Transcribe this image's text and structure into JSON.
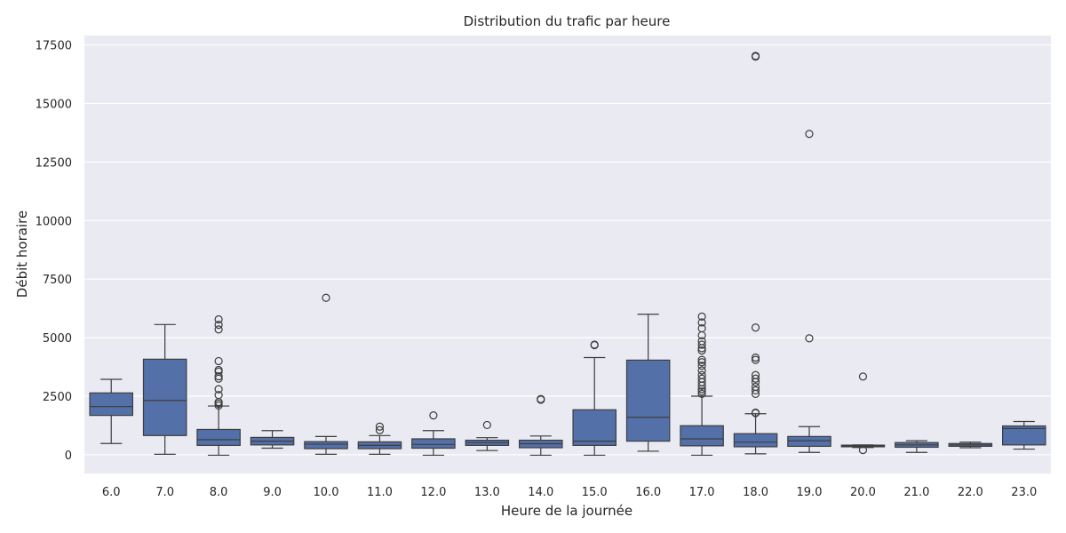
{
  "colors": {
    "box_fill": "#5470a9",
    "line": "#3d3d3d",
    "plot_background": "#eaeaf2",
    "grid": "#ffffff"
  },
  "chart_data": {
    "type": "box",
    "title": "Distribution du trafic par heure",
    "xlabel": "Heure de la journée",
    "ylabel": "Débit horaire",
    "ylim": [
      -800,
      17900
    ],
    "yticks": [
      0,
      2500,
      5000,
      7500,
      10000,
      12500,
      15000,
      17500
    ],
    "grid": "horizontal",
    "categories": [
      "6.0",
      "7.0",
      "8.0",
      "9.0",
      "10.0",
      "11.0",
      "12.0",
      "13.0",
      "14.0",
      "15.0",
      "16.0",
      "17.0",
      "18.0",
      "19.0",
      "20.0",
      "21.0",
      "22.0",
      "23.0"
    ],
    "boxes": [
      {
        "whisker_low": 480,
        "q1": 1680,
        "median": 2060,
        "q3": 2640,
        "whisker_high": 3220,
        "outliers": []
      },
      {
        "whisker_low": 20,
        "q1": 820,
        "median": 2320,
        "q3": 4080,
        "whisker_high": 5560,
        "outliers": []
      },
      {
        "whisker_low": -20,
        "q1": 400,
        "median": 640,
        "q3": 1080,
        "whisker_high": 2080,
        "outliers": [
          2100,
          2180,
          2250,
          2550,
          2800,
          3250,
          3350,
          3550,
          3620,
          4000,
          5350,
          5550,
          5780
        ]
      },
      {
        "whisker_low": 280,
        "q1": 420,
        "median": 580,
        "q3": 740,
        "whisker_high": 1030,
        "outliers": []
      },
      {
        "whisker_low": 20,
        "q1": 260,
        "median": 450,
        "q3": 560,
        "whisker_high": 780,
        "outliers": [
          6700
        ]
      },
      {
        "whisker_low": 20,
        "q1": 260,
        "median": 400,
        "q3": 550,
        "whisker_high": 820,
        "outliers": [
          1050,
          1200
        ]
      },
      {
        "whisker_low": -20,
        "q1": 280,
        "median": 440,
        "q3": 680,
        "whisker_high": 1030,
        "outliers": [
          1680
        ]
      },
      {
        "whisker_low": 180,
        "q1": 400,
        "median": 520,
        "q3": 620,
        "whisker_high": 730,
        "outliers": [
          1270
        ]
      },
      {
        "whisker_low": -20,
        "q1": 300,
        "median": 470,
        "q3": 620,
        "whisker_high": 800,
        "outliers": [
          2350,
          2380
        ]
      },
      {
        "whisker_low": -20,
        "q1": 400,
        "median": 580,
        "q3": 1920,
        "whisker_high": 4150,
        "outliers": [
          4680,
          4700
        ]
      },
      {
        "whisker_low": 150,
        "q1": 580,
        "median": 1600,
        "q3": 4040,
        "whisker_high": 6000,
        "outliers": []
      },
      {
        "whisker_low": -20,
        "q1": 380,
        "median": 680,
        "q3": 1240,
        "whisker_high": 2500,
        "outliers": [
          2600,
          2700,
          2800,
          2950,
          3100,
          3250,
          3400,
          3600,
          3800,
          3950,
          4050,
          4450,
          4550,
          4700,
          4850,
          5100,
          5400,
          5650,
          5900
        ]
      },
      {
        "whisker_low": 40,
        "q1": 340,
        "median": 540,
        "q3": 900,
        "whisker_high": 1750,
        "outliers": [
          1780,
          1800,
          2600,
          2750,
          2900,
          3100,
          3250,
          3400,
          4050,
          4150,
          5430,
          17000,
          17030
        ]
      },
      {
        "whisker_low": 100,
        "q1": 360,
        "median": 600,
        "q3": 780,
        "whisker_high": 1200,
        "outliers": [
          4970,
          13700
        ]
      },
      {
        "whisker_low": 310,
        "q1": 340,
        "median": 380,
        "q3": 410,
        "whisker_high": 420,
        "outliers": [
          200,
          3340
        ]
      },
      {
        "whisker_low": 100,
        "q1": 320,
        "median": 420,
        "q3": 520,
        "whisker_high": 600,
        "outliers": []
      },
      {
        "whisker_low": 300,
        "q1": 360,
        "median": 420,
        "q3": 480,
        "whisker_high": 540,
        "outliers": []
      },
      {
        "whisker_low": 240,
        "q1": 420,
        "median": 1120,
        "q3": 1230,
        "whisker_high": 1420,
        "outliers": []
      }
    ]
  }
}
